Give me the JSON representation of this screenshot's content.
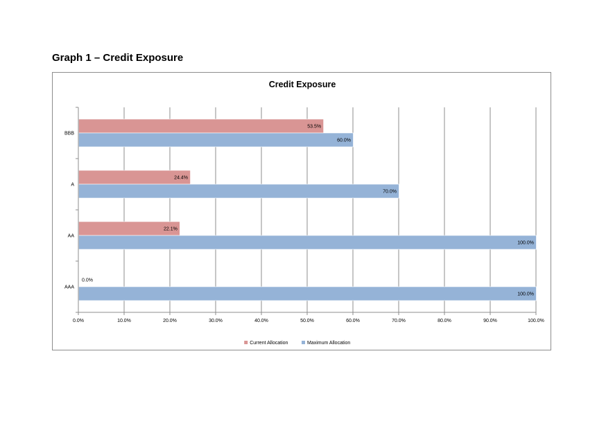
{
  "page": {
    "heading": "Graph 1 – Credit Exposure"
  },
  "chart_data": {
    "type": "bar",
    "orientation": "horizontal",
    "title": "Credit Exposure",
    "categories": [
      "BBB",
      "A",
      "AA",
      "AAA"
    ],
    "series": [
      {
        "name": "Current Allocation",
        "color": "#d99594",
        "values": [
          53.5,
          24.4,
          22.1,
          0.0
        ],
        "labels": [
          "53.5%",
          "24.4%",
          "22.1%",
          "0.0%"
        ]
      },
      {
        "name": "Maximum Allocation",
        "color": "#95b3d7",
        "values": [
          60.0,
          70.0,
          100.0,
          100.0
        ],
        "labels": [
          "60.0%",
          "70.0%",
          "100.0%",
          "100.0%"
        ]
      }
    ],
    "xlim": [
      0,
      100
    ],
    "x_ticks": [
      "0.0%",
      "10.0%",
      "20.0%",
      "30.0%",
      "40.0%",
      "50.0%",
      "60.0%",
      "70.0%",
      "80.0%",
      "90.0%",
      "100.0%"
    ],
    "grid": true,
    "legend_position": "bottom",
    "gridline_color": "#8c8c8c"
  }
}
